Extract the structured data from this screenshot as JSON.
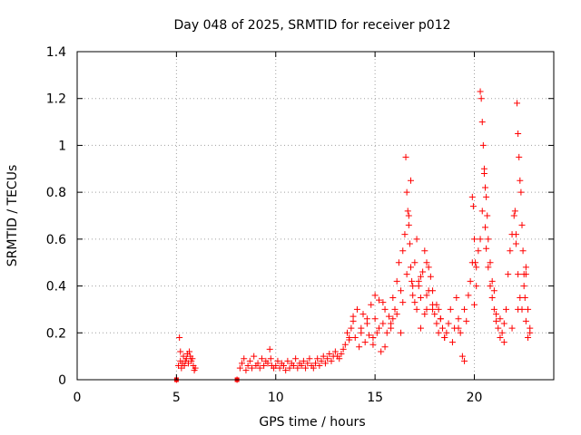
{
  "chart_data": {
    "type": "scatter",
    "title": "Day 048 of 2025, SRMTID for receiver p012",
    "xlabel": "GPS time / hours",
    "ylabel": "SRMTID / TECUs",
    "xlim": [
      0,
      24
    ],
    "ylim": [
      0,
      1.4
    ],
    "xticks": [
      0,
      5,
      10,
      15,
      20
    ],
    "xtick_labels": [
      "0",
      "5",
      "10",
      "15",
      "20"
    ],
    "yticks": [
      0,
      0.2,
      0.4,
      0.6,
      0.8,
      1.0,
      1.2,
      1.4
    ],
    "ytick_labels": [
      "0",
      "0.2",
      "0.4",
      "0.6",
      "0.8",
      "1",
      "1.2",
      "1.4"
    ],
    "grid": true,
    "marker": "+",
    "color": "#ff0000",
    "series": [
      {
        "name": "SRMTID",
        "x": [
          5.0,
          5.1,
          5.15,
          5.2,
          5.2,
          5.25,
          5.3,
          5.35,
          5.4,
          5.45,
          5.5,
          5.55,
          5.6,
          5.65,
          5.7,
          5.75,
          5.8,
          5.85,
          5.9,
          5.95,
          8.05,
          8.2,
          8.3,
          8.4,
          8.5,
          8.6,
          8.7,
          8.8,
          8.9,
          9.0,
          9.1,
          9.2,
          9.3,
          9.4,
          9.5,
          9.6,
          9.7,
          9.75,
          9.8,
          9.9,
          10.0,
          10.1,
          10.2,
          10.3,
          10.4,
          10.5,
          10.6,
          10.7,
          10.8,
          10.9,
          11.0,
          11.1,
          11.2,
          11.3,
          11.4,
          11.5,
          11.6,
          11.7,
          11.8,
          11.9,
          12.0,
          12.1,
          12.2,
          12.3,
          12.4,
          12.5,
          12.6,
          12.7,
          12.8,
          12.9,
          13.0,
          13.1,
          13.2,
          13.3,
          13.4,
          13.5,
          13.6,
          13.7,
          13.8,
          13.9,
          14.0,
          14.1,
          14.2,
          14.3,
          14.4,
          14.5,
          14.6,
          14.7,
          14.8,
          14.9,
          15.0,
          15.1,
          15.2,
          15.3,
          15.4,
          15.5,
          15.6,
          15.7,
          15.8,
          15.9,
          16.0,
          16.1,
          16.2,
          16.3,
          16.4,
          16.5,
          16.6,
          16.7,
          16.8,
          16.9,
          17.0,
          17.1,
          17.2,
          17.3,
          17.4,
          17.5,
          17.6,
          17.7,
          17.8,
          17.9,
          18.0,
          18.1,
          18.2,
          18.3,
          18.4,
          18.5,
          18.6,
          18.7,
          18.8,
          18.9,
          19.0,
          19.1,
          19.2,
          19.3,
          19.4,
          19.5,
          19.6,
          19.7,
          19.8,
          19.9,
          20.0,
          20.1,
          20.2,
          20.3,
          20.4,
          20.5,
          20.55,
          20.6,
          20.7,
          20.8,
          20.9,
          21.0,
          21.1,
          21.2,
          21.3,
          21.4,
          21.5,
          21.6,
          21.7,
          21.8,
          21.9,
          22.0,
          22.1,
          22.2,
          22.3,
          22.4,
          22.5,
          22.6,
          22.7,
          22.8,
          16.55,
          16.6,
          16.65,
          16.7,
          16.75,
          16.8,
          16.85,
          16.9,
          17.0,
          17.1,
          17.2,
          17.3,
          17.5,
          17.6,
          17.7,
          17.9,
          18.1,
          18.3,
          20.3,
          20.35,
          20.4,
          20.45,
          20.5,
          20.55,
          20.6,
          20.65,
          20.7,
          20.8,
          20.9,
          21.0,
          21.1,
          19.9,
          19.95,
          20.0,
          20.05,
          20.1,
          22.05,
          22.1,
          22.15,
          22.2,
          22.25,
          22.3,
          22.35,
          22.4,
          22.45,
          22.5,
          22.55,
          22.6,
          22.7,
          22.8,
          14.3,
          14.6,
          14.9,
          15.2,
          15.5,
          15.8,
          16.1,
          16.4,
          13.7,
          13.9,
          15.0,
          15.4,
          15.9,
          16.3,
          17.3,
          17.6,
          17.9,
          18.2,
          18.5,
          19.2,
          19.5,
          21.3,
          21.5,
          21.9,
          22.2,
          22.6
        ],
        "y": [
          0.0,
          0.06,
          0.18,
          0.12,
          0.08,
          0.05,
          0.07,
          0.1,
          0.06,
          0.08,
          0.09,
          0.11,
          0.07,
          0.12,
          0.1,
          0.08,
          0.09,
          0.06,
          0.04,
          0.05,
          0.0,
          0.05,
          0.07,
          0.09,
          0.04,
          0.06,
          0.08,
          0.05,
          0.1,
          0.06,
          0.07,
          0.05,
          0.09,
          0.06,
          0.08,
          0.07,
          0.13,
          0.09,
          0.06,
          0.05,
          0.06,
          0.08,
          0.05,
          0.07,
          0.06,
          0.04,
          0.08,
          0.05,
          0.07,
          0.06,
          0.09,
          0.05,
          0.07,
          0.06,
          0.08,
          0.05,
          0.07,
          0.09,
          0.06,
          0.05,
          0.07,
          0.09,
          0.06,
          0.08,
          0.1,
          0.07,
          0.09,
          0.11,
          0.08,
          0.1,
          0.12,
          0.1,
          0.09,
          0.11,
          0.13,
          0.15,
          0.2,
          0.17,
          0.22,
          0.25,
          0.18,
          0.3,
          0.14,
          0.22,
          0.28,
          0.16,
          0.24,
          0.19,
          0.32,
          0.15,
          0.26,
          0.2,
          0.34,
          0.12,
          0.24,
          0.3,
          0.2,
          0.27,
          0.22,
          0.35,
          0.3,
          0.42,
          0.5,
          0.38,
          0.55,
          0.62,
          0.45,
          0.7,
          0.85,
          0.4,
          0.5,
          0.6,
          0.42,
          0.35,
          0.46,
          0.55,
          0.5,
          0.38,
          0.44,
          0.32,
          0.28,
          0.24,
          0.3,
          0.26,
          0.22,
          0.18,
          0.2,
          0.24,
          0.3,
          0.16,
          0.22,
          0.35,
          0.26,
          0.2,
          0.1,
          0.3,
          0.25,
          0.36,
          0.42,
          0.5,
          0.32,
          0.48,
          0.55,
          0.6,
          0.72,
          0.9,
          0.65,
          0.56,
          0.48,
          0.4,
          0.35,
          0.3,
          0.25,
          0.22,
          0.18,
          0.2,
          0.24,
          0.3,
          0.45,
          0.55,
          0.62,
          0.7,
          0.58,
          0.45,
          0.35,
          0.3,
          0.4,
          0.48,
          0.3,
          0.2,
          0.95,
          0.8,
          0.72,
          0.66,
          0.58,
          0.48,
          0.42,
          0.36,
          0.33,
          0.3,
          0.4,
          0.44,
          0.28,
          0.36,
          0.48,
          0.3,
          0.32,
          0.26,
          1.23,
          1.2,
          1.1,
          1.0,
          0.88,
          0.82,
          0.78,
          0.7,
          0.6,
          0.5,
          0.42,
          0.38,
          0.28,
          0.78,
          0.74,
          0.6,
          0.5,
          0.4,
          0.72,
          0.62,
          1.18,
          1.05,
          0.95,
          0.85,
          0.8,
          0.66,
          0.55,
          0.45,
          0.35,
          0.25,
          0.18,
          0.22,
          0.2,
          0.26,
          0.18,
          0.22,
          0.14,
          0.24,
          0.28,
          0.33,
          0.18,
          0.27,
          0.36,
          0.33,
          0.26,
          0.2,
          0.22,
          0.3,
          0.38,
          0.2,
          0.18,
          0.22,
          0.08,
          0.26,
          0.16,
          0.22,
          0.3,
          0.45
        ]
      }
    ],
    "square_markers": [
      {
        "x": 5.0,
        "y": 0.0
      },
      {
        "x": 8.05,
        "y": 0.0
      }
    ]
  }
}
